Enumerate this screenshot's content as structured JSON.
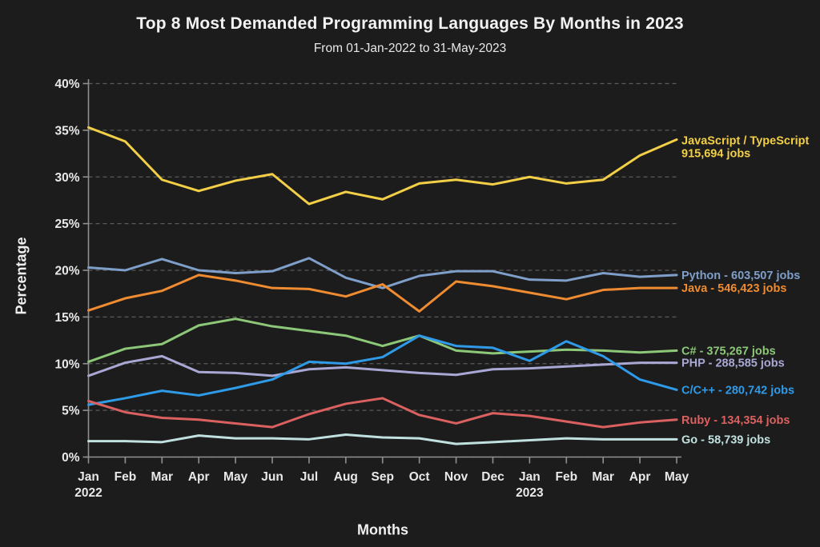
{
  "page": {
    "title": "Top 8 Most Demanded Programming Languages By Months in 2023",
    "subtitle": "From 01-Jan-2022 to 31-May-2023",
    "background_color": "#1c1c1c",
    "text_color": "#efefef"
  },
  "chart_data": {
    "type": "line",
    "title": "Top 8 Most Demanded Programming Languages By Months in 2023",
    "subtitle": "From 01-Jan-2022 to 31-May-2023",
    "xlabel": "Months",
    "ylabel": "Percentage",
    "ylim": [
      0,
      40
    ],
    "ytick_step": 5,
    "ytick_suffix": "%",
    "grid": "horizontal dashed",
    "grid_color": "#5a5a5a",
    "axis_color": "#909090",
    "legend_position": "right-edge labels colored per series",
    "categories": [
      "Jan",
      "Feb",
      "Mar",
      "Apr",
      "May",
      "Jun",
      "Jul",
      "Aug",
      "Sep",
      "Oct",
      "Nov",
      "Dec",
      "Jan",
      "Feb",
      "Mar",
      "Apr",
      "May"
    ],
    "year_markers": [
      {
        "index": 0,
        "label": "2022"
      },
      {
        "index": 12,
        "label": "2023"
      }
    ],
    "series": [
      {
        "name": "JavaScript / TypeScript",
        "end_label_lines": [
          "JavaScript / TypeScript",
          "915,694 jobs"
        ],
        "color": "#f2cf46",
        "values": [
          35.3,
          33.8,
          29.7,
          28.5,
          29.6,
          30.3,
          27.1,
          28.4,
          27.6,
          29.3,
          29.7,
          29.2,
          30.0,
          29.3,
          29.7,
          32.3,
          34.0
        ]
      },
      {
        "name": "Python",
        "end_label_lines": [
          "Python - 603,507 jobs"
        ],
        "color": "#7f9fcb",
        "values": [
          20.3,
          20.0,
          21.2,
          20.0,
          19.7,
          19.9,
          21.3,
          19.2,
          18.1,
          19.4,
          19.9,
          19.9,
          19.0,
          18.9,
          19.7,
          19.3,
          19.5
        ]
      },
      {
        "name": "Java",
        "end_label_lines": [
          "Java - 546,423 jobs"
        ],
        "color": "#ef8b30",
        "values": [
          15.7,
          17.0,
          17.8,
          19.5,
          18.9,
          18.1,
          18.0,
          17.2,
          18.5,
          15.6,
          18.8,
          18.3,
          17.6,
          16.9,
          17.9,
          18.1,
          18.1
        ]
      },
      {
        "name": "C#",
        "end_label_lines": [
          "C# - 375,267 jobs"
        ],
        "color": "#8dc878",
        "values": [
          10.2,
          11.6,
          12.1,
          14.1,
          14.8,
          14.0,
          13.5,
          13.0,
          11.9,
          13.0,
          11.4,
          11.1,
          11.3,
          11.5,
          11.4,
          11.2,
          11.4
        ]
      },
      {
        "name": "PHP",
        "end_label_lines": [
          "PHP - 288,585 jobs"
        ],
        "color": "#a9a8d5",
        "values": [
          8.7,
          10.1,
          10.8,
          9.1,
          9.0,
          8.7,
          9.4,
          9.6,
          9.3,
          9.0,
          8.8,
          9.4,
          9.5,
          9.7,
          9.9,
          10.1,
          10.1
        ]
      },
      {
        "name": "C/C++",
        "end_label_lines": [
          "C/C++ - 280,742 jobs"
        ],
        "color": "#2f9be8",
        "values": [
          5.6,
          6.3,
          7.1,
          6.6,
          7.4,
          8.3,
          10.2,
          10.0,
          10.7,
          13.0,
          11.9,
          11.7,
          10.3,
          12.4,
          10.8,
          8.3,
          7.2
        ]
      },
      {
        "name": "Ruby",
        "end_label_lines": [
          "Ruby - 134,354 jobs"
        ],
        "color": "#db6060",
        "values": [
          6.0,
          4.8,
          4.2,
          4.0,
          3.6,
          3.2,
          4.6,
          5.7,
          6.3,
          4.5,
          3.6,
          4.7,
          4.4,
          3.8,
          3.2,
          3.7,
          4.0
        ]
      },
      {
        "name": "Go",
        "end_label_lines": [
          "Go - 58,739 jobs"
        ],
        "color": "#c0e1df",
        "values": [
          1.7,
          1.7,
          1.6,
          2.3,
          2.0,
          2.0,
          1.9,
          2.4,
          2.1,
          2.0,
          1.4,
          1.6,
          1.8,
          2.0,
          1.9,
          1.9,
          1.9
        ]
      }
    ]
  }
}
